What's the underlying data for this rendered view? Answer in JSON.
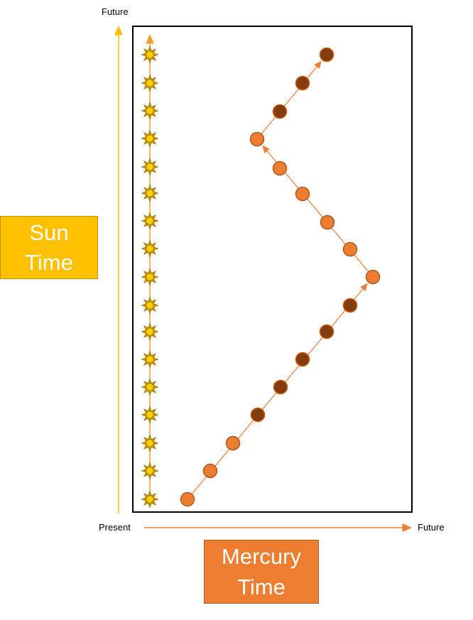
{
  "axes": {
    "vertical": {
      "end": "Future"
    },
    "horizontal": {
      "start": "Present",
      "end": "Future"
    }
  },
  "labels": {
    "sun": "Sun Time",
    "mercury": "Mercury Time"
  }
}
